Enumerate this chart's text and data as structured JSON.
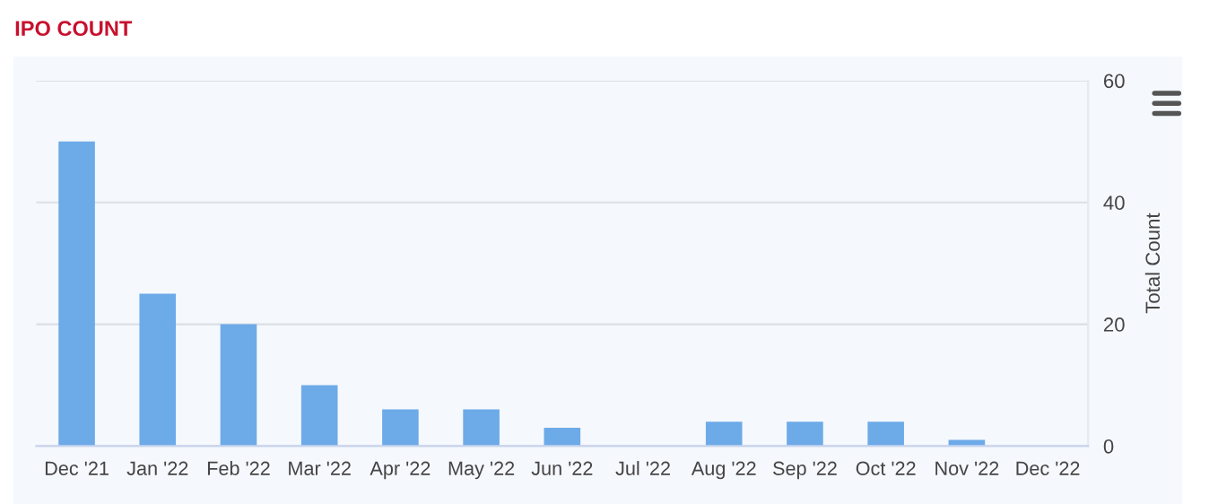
{
  "chart_data": {
    "type": "bar",
    "title": "IPO COUNT",
    "ylabel": "Total Count",
    "categories": [
      "Dec '21",
      "Jan '22",
      "Feb '22",
      "Mar '22",
      "Apr '22",
      "May '22",
      "Jun '22",
      "Jul '22",
      "Aug '22",
      "Sep '22",
      "Oct '22",
      "Nov '22",
      "Dec '22"
    ],
    "values": [
      50,
      25,
      20,
      10,
      6,
      6,
      3,
      0,
      4,
      4,
      4,
      1,
      0
    ],
    "color": "#6daae8",
    "ylim": [
      0,
      60
    ],
    "yticks": [
      0,
      20,
      40,
      60
    ],
    "grid": "y",
    "legend": false
  }
}
